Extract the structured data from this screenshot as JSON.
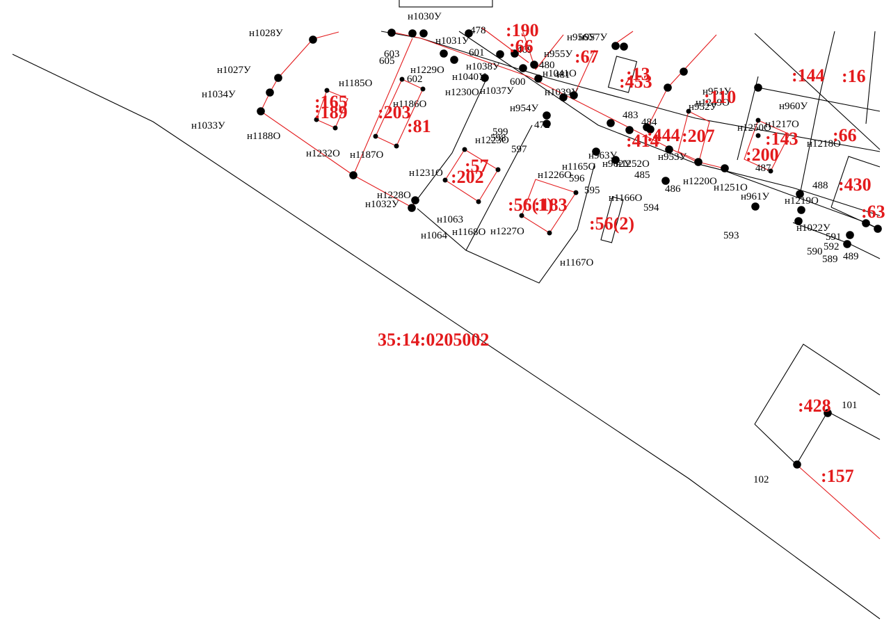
{
  "map": {
    "quarter_label": "35:14:0205002",
    "colors": {
      "line": "#000000",
      "boundary": "#e31a1c",
      "label": "#e31a1c",
      "vertex": "#000000"
    },
    "parcel_labels": [
      ":190",
      ":66",
      ":67",
      ":13",
      ":453",
      ":144",
      ":16",
      ":165",
      ":189",
      ":203",
      ":81",
      ":110",
      ":207",
      ":444",
      ":414",
      ":143",
      ":200",
      ":66",
      ":430",
      ":63",
      ":57",
      ":202",
      ":56(1)",
      ":183",
      ":56(2)",
      ":428",
      ":157"
    ],
    "point_labels": [
      "н1030У",
      "н1028У",
      "н1031У",
      "478",
      "н956У",
      "н957У",
      "603",
      "605",
      "601",
      "469",
      "н955У",
      "н1027У",
      "н1229О",
      "н1038У",
      "480",
      "н1041О",
      "н1185О",
      "602",
      "н1040У",
      "481",
      "н1034У",
      "600",
      "н1230О",
      "н1037У",
      "н1039У",
      "н951У",
      "н1186О",
      "н952У",
      "н1249О",
      "н960У",
      "н954У",
      "483",
      "484",
      "н1033У",
      "н1250О",
      "н1217О",
      "472",
      "599",
      "598",
      "н1188О",
      "н1223О",
      "н1218О",
      "597",
      "н1232О",
      "н1187О",
      "н963У",
      "н953У",
      "н1165О",
      "н962У",
      "н1252О",
      "487",
      "н1226О",
      "596",
      "485",
      "н1231О",
      "н1220О",
      "488",
      "595",
      "н1251О",
      "486",
      "н1228О",
      "н961У",
      "н1219О",
      "н1032У",
      "н1166О",
      "594",
      "н1063",
      "н1022У",
      "н1168О",
      "н1227О",
      "591",
      "592",
      "н1064",
      "593",
      "590",
      "589",
      "489",
      "н1167О",
      "101",
      "102"
    ]
  }
}
